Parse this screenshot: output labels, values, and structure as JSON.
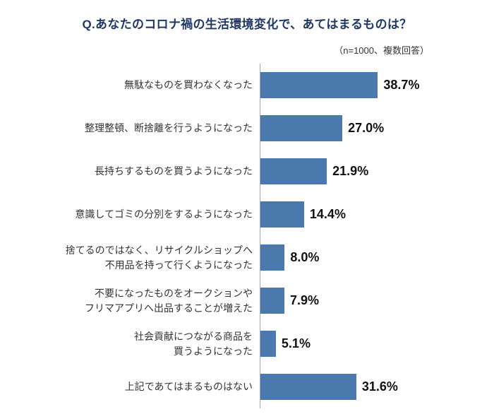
{
  "title": "Q.あなたのコロナ禍の生活環境変化で、あてはまるものは？",
  "note": "（n=1000、複数回答）",
  "colors": {
    "bar": "#4a79ad",
    "title_text": "#1f3864",
    "axis_line": "#a6a6a6",
    "label_text": "#333333",
    "value_text": "#111111"
  },
  "chart_data": {
    "type": "bar",
    "orientation": "horizontal",
    "title": "Q.あなたのコロナ禍の生活環境変化で、あてはまるものは？",
    "subtitle": "（n=1000、複数回答）",
    "xlabel": "",
    "ylabel": "",
    "xlim": [
      0,
      40
    ],
    "grid": false,
    "legend": false,
    "categories": [
      "無駄なものを買わなくなった",
      "整理整頓、断捨離を行うようになった",
      "長持ちするものを買うようになった",
      "意識してゴミの分別をするようになった",
      "捨てるのではなく、リサイクルショップへ\n不用品を持って行くようになった",
      "不要になったものをオークションや\nフリマアプリへ出品することが増えた",
      "社会貢献につながる商品を\n買うようになった",
      "上記であてはまるものはない"
    ],
    "values": [
      38.7,
      27.0,
      21.9,
      14.4,
      8.0,
      7.9,
      5.1,
      31.6
    ],
    "value_labels": [
      "38.7%",
      "27.0%",
      "21.9%",
      "14.4%",
      "8.0%",
      "7.9%",
      "5.1%",
      "31.6%"
    ]
  }
}
